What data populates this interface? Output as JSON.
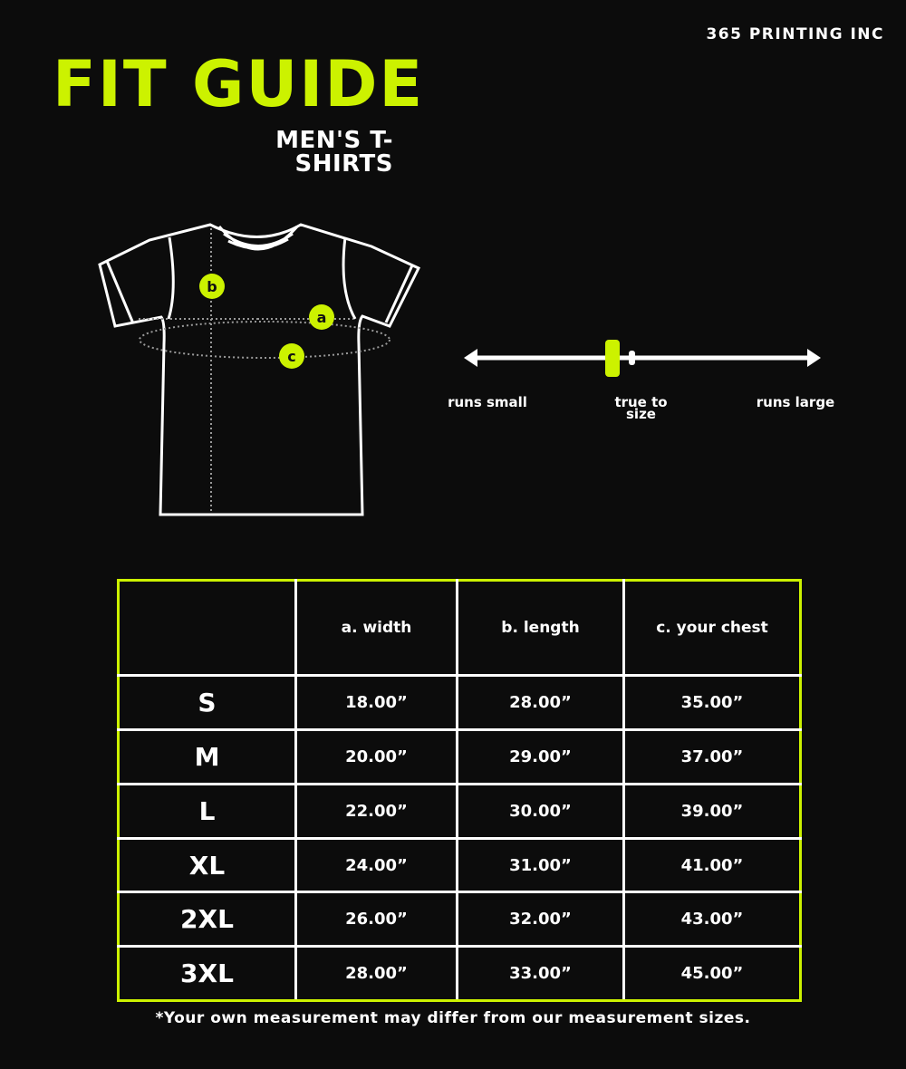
{
  "brand": "365 PRINTING INC",
  "title": "FIT GUIDE",
  "subtitle": "MEN'S T-SHIRTS",
  "accent_color": "#ccf200",
  "diagram_markers": {
    "a": "a",
    "b": "b",
    "c": "c"
  },
  "fit_scale": {
    "labels": {
      "small": "runs small",
      "true": "true to size",
      "large": "runs large"
    },
    "position": "true to size (slightly toward runs small)"
  },
  "table": {
    "headers": [
      "",
      "a. width",
      "b. length",
      "c. your chest"
    ],
    "rows": [
      [
        "S",
        "18.00”",
        "28.00”",
        "35.00”"
      ],
      [
        "M",
        "20.00”",
        "29.00”",
        "37.00”"
      ],
      [
        "L",
        "22.00”",
        "30.00”",
        "39.00”"
      ],
      [
        "XL",
        "24.00”",
        "31.00”",
        "41.00”"
      ],
      [
        "2XL",
        "26.00”",
        "32.00”",
        "43.00”"
      ],
      [
        "3XL",
        "28.00”",
        "33.00”",
        "45.00”"
      ]
    ]
  },
  "note": "*Your own measurement may differ from our measurement sizes."
}
